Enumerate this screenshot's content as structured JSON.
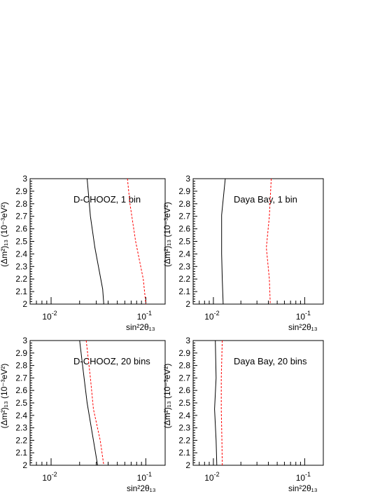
{
  "chart_data": [
    {
      "type": "line",
      "annotation": "D-CHOOZ, 1 bin",
      "xlabel": "sin²2θ₁₃",
      "ylabel": "(Δm²)₁₃ (10⁻³eV²)",
      "x_scale": "log",
      "xlim": [
        0.006,
        0.16
      ],
      "ylim": [
        2.0,
        3.0
      ],
      "y_ticks": [
        "2",
        "2.1",
        "2.2",
        "2.3",
        "2.4",
        "2.5",
        "2.6",
        "2.7",
        "2.8",
        "2.9",
        "3"
      ],
      "x_tick_labels": [
        {
          "base": "10",
          "exp": "-2"
        },
        {
          "base": "10",
          "exp": "-1"
        }
      ],
      "series": [
        {
          "style": "solid",
          "color": "#000000",
          "x": [
            0.024,
            0.026,
            0.029,
            0.035,
            0.036
          ],
          "y": [
            3.0,
            2.7,
            2.45,
            2.12,
            2.0
          ]
        },
        {
          "style": "dashed",
          "color": "#ff0000",
          "x": [
            0.064,
            0.068,
            0.078,
            0.094,
            0.1
          ],
          "y": [
            3.0,
            2.8,
            2.5,
            2.2,
            2.0
          ]
        }
      ]
    },
    {
      "type": "line",
      "annotation": "Daya Bay, 1 bin",
      "xlabel": "sin²2θ₁₃",
      "ylabel": "(Δm²)₁₃ (10⁻³eV²)",
      "x_scale": "log",
      "xlim": [
        0.006,
        0.16
      ],
      "ylim": [
        2.0,
        3.0
      ],
      "y_ticks": [
        "2",
        "2.1",
        "2.2",
        "2.3",
        "2.4",
        "2.5",
        "2.6",
        "2.7",
        "2.8",
        "2.9",
        "3"
      ],
      "x_tick_labels": [
        {
          "base": "10",
          "exp": "-2"
        },
        {
          "base": "10",
          "exp": "-1"
        }
      ],
      "series": [
        {
          "style": "solid",
          "color": "#000000",
          "x": [
            0.0135,
            0.0123,
            0.0123,
            0.0125,
            0.0128
          ],
          "y": [
            3.0,
            2.71,
            2.4,
            2.2,
            2.0
          ]
        },
        {
          "style": "dashed",
          "color": "#ff0000",
          "x": [
            0.043,
            0.041,
            0.038,
            0.041,
            0.042
          ],
          "y": [
            3.0,
            2.7,
            2.45,
            2.2,
            2.0
          ]
        }
      ]
    },
    {
      "type": "line",
      "annotation": "D-CHOOZ, 20 bins",
      "xlabel": "sin²2θ₁₃",
      "ylabel": "(Δm²)₁₃ (10⁻³eV²)",
      "x_scale": "log",
      "xlim": [
        0.006,
        0.16
      ],
      "ylim": [
        2.0,
        3.0
      ],
      "y_ticks": [
        "2",
        "2.1",
        "2.2",
        "2.3",
        "2.4",
        "2.5",
        "2.6",
        "2.7",
        "2.8",
        "2.9",
        "3"
      ],
      "x_tick_labels": [
        {
          "base": "10",
          "exp": "-2"
        },
        {
          "base": "10",
          "exp": "-1"
        }
      ],
      "series": [
        {
          "style": "solid",
          "color": "#000000",
          "x": [
            0.02,
            0.0215,
            0.024,
            0.028,
            0.031
          ],
          "y": [
            3.0,
            2.8,
            2.5,
            2.2,
            2.0
          ]
        },
        {
          "style": "dashed",
          "color": "#ff0000",
          "x": [
            0.0235,
            0.026,
            0.028,
            0.033,
            0.036
          ],
          "y": [
            3.0,
            2.7,
            2.45,
            2.2,
            2.0
          ]
        }
      ]
    },
    {
      "type": "line",
      "annotation": "Daya Bay, 20 bins",
      "xlabel": "sin²2θ₁₃",
      "ylabel": "(Δm²)₁₃ (10⁻³eV²)",
      "x_scale": "log",
      "xlim": [
        0.006,
        0.16
      ],
      "ylim": [
        2.0,
        3.0
      ],
      "y_ticks": [
        "2",
        "2.1",
        "2.2",
        "2.3",
        "2.4",
        "2.5",
        "2.6",
        "2.7",
        "2.8",
        "2.9",
        "3"
      ],
      "x_tick_labels": [
        {
          "base": "10",
          "exp": "-2"
        },
        {
          "base": "10",
          "exp": "-1"
        }
      ],
      "series": [
        {
          "style": "solid",
          "color": "#000000",
          "x": [
            0.0105,
            0.0107,
            0.0103,
            0.0107,
            0.0109
          ],
          "y": [
            3.0,
            2.7,
            2.45,
            2.2,
            2.0
          ]
        },
        {
          "style": "dashed",
          "color": "#ff0000",
          "x": [
            0.0125,
            0.0122,
            0.0122,
            0.0124,
            0.0125
          ],
          "y": [
            3.0,
            2.7,
            2.45,
            2.2,
            2.0
          ]
        }
      ]
    }
  ]
}
